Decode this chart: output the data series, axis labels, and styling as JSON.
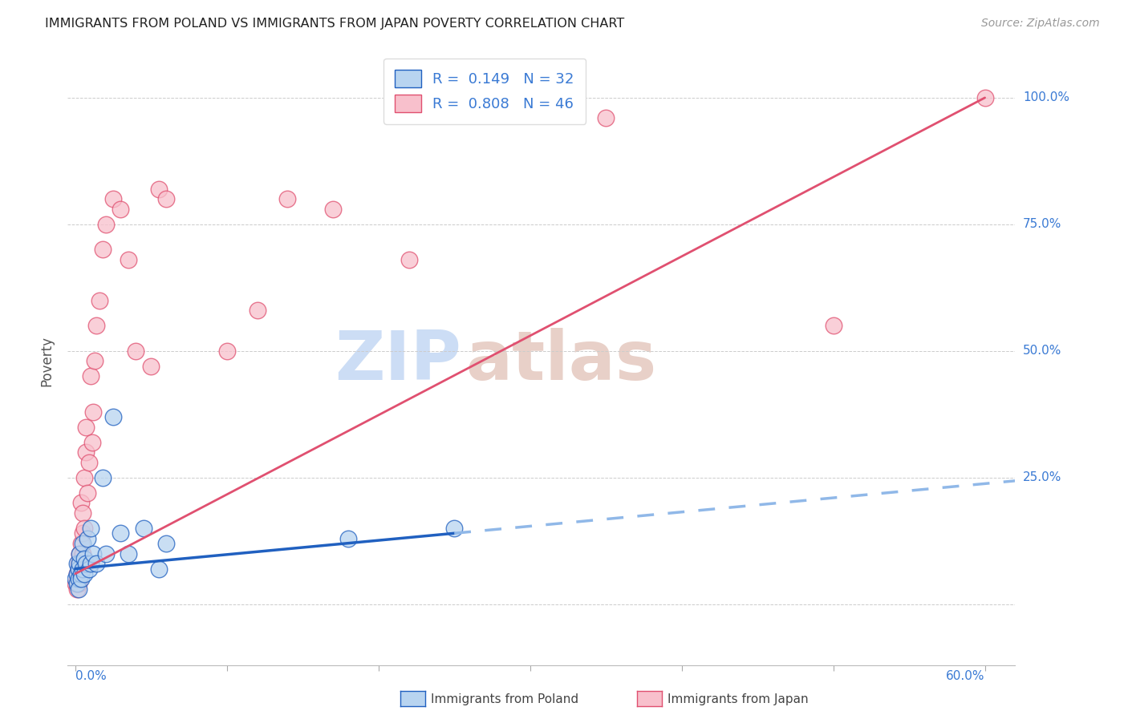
{
  "title": "IMMIGRANTS FROM POLAND VS IMMIGRANTS FROM JAPAN POVERTY CORRELATION CHART",
  "source": "Source: ZipAtlas.com",
  "ylabel": "Poverty",
  "legend1_r": "0.149",
  "legend1_n": "32",
  "legend2_r": "0.808",
  "legend2_n": "46",
  "color_poland": "#b8d4f0",
  "color_japan": "#f8c0cc",
  "color_poland_line": "#2060c0",
  "color_japan_line": "#e05070",
  "color_dashed_line": "#90b8e8",
  "poland_x": [
    0.0,
    0.001,
    0.001,
    0.001,
    0.002,
    0.002,
    0.002,
    0.003,
    0.003,
    0.004,
    0.004,
    0.005,
    0.005,
    0.006,
    0.006,
    0.007,
    0.008,
    0.009,
    0.01,
    0.01,
    0.012,
    0.014,
    0.018,
    0.02,
    0.025,
    0.03,
    0.035,
    0.045,
    0.055,
    0.06,
    0.18,
    0.25
  ],
  "poland_y": [
    0.05,
    0.08,
    0.06,
    0.04,
    0.07,
    0.05,
    0.03,
    0.08,
    0.1,
    0.06,
    0.05,
    0.12,
    0.07,
    0.09,
    0.06,
    0.08,
    0.13,
    0.07,
    0.15,
    0.08,
    0.1,
    0.08,
    0.25,
    0.1,
    0.37,
    0.14,
    0.1,
    0.15,
    0.07,
    0.12,
    0.13,
    0.15
  ],
  "japan_x": [
    0.0,
    0.001,
    0.001,
    0.001,
    0.002,
    0.002,
    0.002,
    0.002,
    0.003,
    0.003,
    0.003,
    0.003,
    0.004,
    0.004,
    0.005,
    0.005,
    0.005,
    0.006,
    0.006,
    0.007,
    0.007,
    0.008,
    0.009,
    0.01,
    0.011,
    0.012,
    0.013,
    0.014,
    0.016,
    0.018,
    0.02,
    0.025,
    0.03,
    0.035,
    0.04,
    0.05,
    0.055,
    0.06,
    0.1,
    0.12,
    0.14,
    0.17,
    0.22,
    0.35,
    0.5,
    0.6
  ],
  "japan_y": [
    0.04,
    0.06,
    0.03,
    0.05,
    0.07,
    0.04,
    0.08,
    0.06,
    0.09,
    0.05,
    0.07,
    0.1,
    0.12,
    0.2,
    0.14,
    0.18,
    0.1,
    0.25,
    0.15,
    0.3,
    0.35,
    0.22,
    0.28,
    0.45,
    0.32,
    0.38,
    0.48,
    0.55,
    0.6,
    0.7,
    0.75,
    0.8,
    0.78,
    0.68,
    0.5,
    0.47,
    0.82,
    0.8,
    0.5,
    0.58,
    0.8,
    0.78,
    0.68,
    0.96,
    0.55,
    1.0
  ],
  "xlim_min": -0.005,
  "xlim_max": 0.62,
  "ylim_min": -0.12,
  "ylim_max": 1.08,
  "ytick_positions": [
    0.0,
    0.25,
    0.5,
    0.75,
    1.0
  ],
  "ytick_labels": [
    "",
    "25.0%",
    "50.0%",
    "75.0%",
    "100.0%"
  ],
  "xtick_positions": [
    0.0,
    0.1,
    0.2,
    0.3,
    0.4,
    0.5,
    0.6
  ],
  "watermark_zip_color": "#ccddf5",
  "watermark_atlas_color": "#e8d0c8"
}
